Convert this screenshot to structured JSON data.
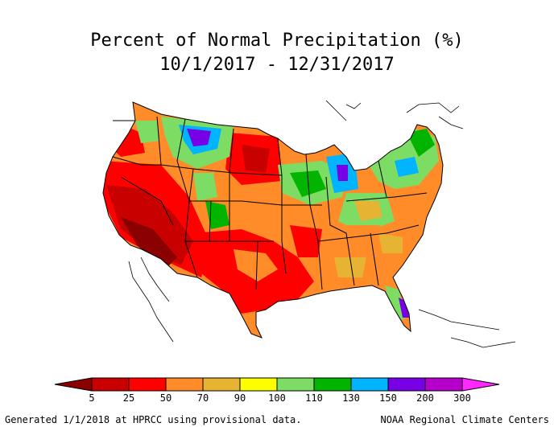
{
  "title": {
    "line1": "Percent of Normal Precipitation (%)",
    "line2": "10/1/2017 - 12/31/2017"
  },
  "legend": {
    "stops": [
      "5",
      "25",
      "50",
      "70",
      "90",
      "100",
      "110",
      "130",
      "150",
      "200",
      "300"
    ],
    "colors": [
      "#8b0000",
      "#c80000",
      "#ff0000",
      "#ff8c28",
      "#e6b432",
      "#ffff00",
      "#7ddc64",
      "#00b400",
      "#00b4ff",
      "#7800e6",
      "#b400c8",
      "#ff28ff"
    ]
  },
  "footer": {
    "left": "Generated 1/1/2018 at HPRCC using provisional data.",
    "right": "NOAA Regional Climate Centers"
  }
}
